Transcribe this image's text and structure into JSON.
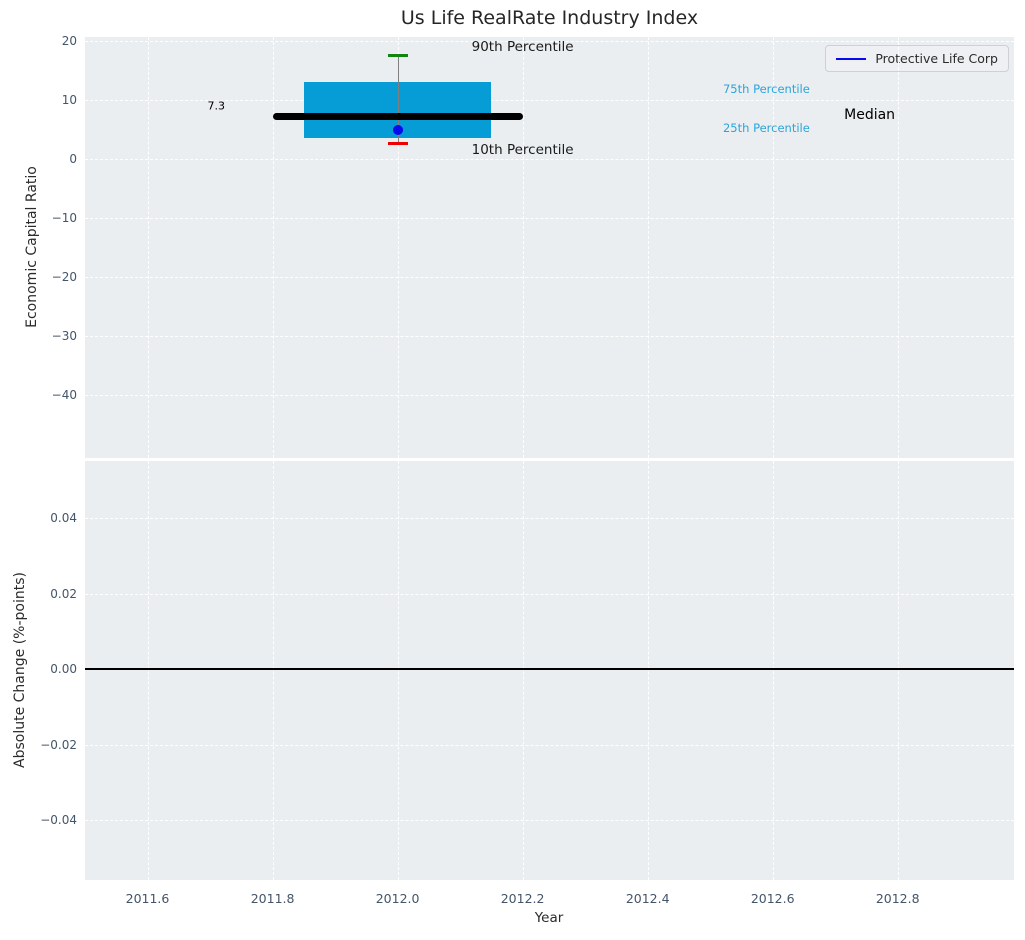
{
  "figure": {
    "title": "Us Life RealRate Industry Index"
  },
  "colors": {
    "axes_bg": "#eaeef0",
    "grid": "#ffffff",
    "box_fill": "#069cd6",
    "median_line": "#000000",
    "whisker_line": "#7f7f7f",
    "cap_high": "#108510",
    "cap_low": "#ee0000",
    "point": "#0909ee",
    "legend_line": "#0909ee",
    "tick_label": "#445569",
    "axis_label": "#2b2b2b",
    "percentile_label": "#2aa5da",
    "zero_line": "#000000"
  },
  "chart_data": [
    {
      "type": "boxplot",
      "panel": "top",
      "title": "Us Life RealRate Industry Index",
      "ylabel": "Economic Capital Ratio",
      "xlim": [
        2011.5,
        2012.986
      ],
      "ylim": [
        -50.7,
        20.7
      ],
      "grid": true,
      "yticks": [
        {
          "value": 20,
          "label": "20"
        },
        {
          "value": 10,
          "label": "10"
        },
        {
          "value": 0,
          "label": "0"
        },
        {
          "value": -10,
          "label": "−10"
        },
        {
          "value": -20,
          "label": "−20"
        },
        {
          "value": -30,
          "label": "−30"
        },
        {
          "value": -40,
          "label": "−40"
        }
      ],
      "box": {
        "x_center": 2012.0,
        "box_left": 2011.85,
        "box_right": 2012.15,
        "q1": 3.6,
        "q3": 13.0,
        "median": 7.3,
        "median_left": 2011.8,
        "median_right": 2012.2,
        "percentile_10": 2.7,
        "percentile_90": 17.5,
        "cap_half_width": 0.016
      },
      "point": {
        "name": "Protective Life Corp",
        "x": 2012.0,
        "y": 4.9
      },
      "annotations": [
        {
          "name": "label-90th-percentile",
          "text": "90th Percentile",
          "x": 2012.2,
          "y": 19.0,
          "size": 13.5,
          "color": "#1a1a1a"
        },
        {
          "name": "label-10th-percentile",
          "text": "10th Percentile",
          "x": 2012.2,
          "y": 1.5,
          "size": 13.5,
          "color": "#1a1a1a"
        },
        {
          "name": "label-median-value",
          "text": "7.3",
          "x": 2011.71,
          "y": 9.0,
          "size": 11,
          "color": "#000000"
        },
        {
          "name": "label-75th-percentile",
          "text": "75th Percentile",
          "x": 2012.59,
          "y": 11.9,
          "size": 11.5,
          "color": "#2aa5da"
        },
        {
          "name": "label-25th-percentile",
          "text": "25th Percentile",
          "x": 2012.59,
          "y": 5.3,
          "size": 11.5,
          "color": "#2aa5da"
        },
        {
          "name": "label-median",
          "text": "Median",
          "x": 2012.755,
          "y": 7.5,
          "size": 14,
          "color": "#000000"
        }
      ],
      "legend": {
        "position": "upper right",
        "entries": [
          {
            "label": "Protective Life Corp",
            "color": "#0909ee",
            "marker": "line"
          }
        ]
      }
    },
    {
      "type": "line",
      "panel": "bottom",
      "ylabel": "Absolute Change (%-points)",
      "xlabel": "Year",
      "xlim": [
        2011.5,
        2012.986
      ],
      "ylim": [
        -0.0559,
        0.0551
      ],
      "grid": true,
      "series": [],
      "zero_line": 0.0,
      "yticks": [
        {
          "value": 0.04,
          "label": "0.04"
        },
        {
          "value": 0.02,
          "label": "0.02"
        },
        {
          "value": 0.0,
          "label": "0.00"
        },
        {
          "value": -0.02,
          "label": "−0.02"
        },
        {
          "value": -0.04,
          "label": "−0.04"
        }
      ],
      "xticks": [
        {
          "value": 2011.6,
          "label": "2011.6"
        },
        {
          "value": 2011.8,
          "label": "2011.8"
        },
        {
          "value": 2012.0,
          "label": "2012.0"
        },
        {
          "value": 2012.2,
          "label": "2012.2"
        },
        {
          "value": 2012.4,
          "label": "2012.4"
        },
        {
          "value": 2012.6,
          "label": "2012.6"
        },
        {
          "value": 2012.8,
          "label": "2012.8"
        }
      ]
    }
  ]
}
